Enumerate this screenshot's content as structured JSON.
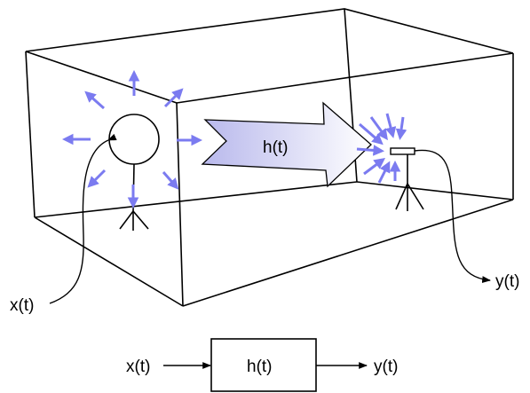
{
  "diagram": {
    "room_label": "h(t)",
    "source_label": "x(t)",
    "receiver_label": "y(t)"
  },
  "block_diagram": {
    "input_label": "x(t)",
    "system_label": "h(t)",
    "output_label": "y(t)"
  },
  "colors": {
    "line": "#000000",
    "ray": "#7b7bf0",
    "arrow_gradient_start": "#b8b8ec",
    "arrow_gradient_end": "#ffffff",
    "background": "#ffffff"
  }
}
